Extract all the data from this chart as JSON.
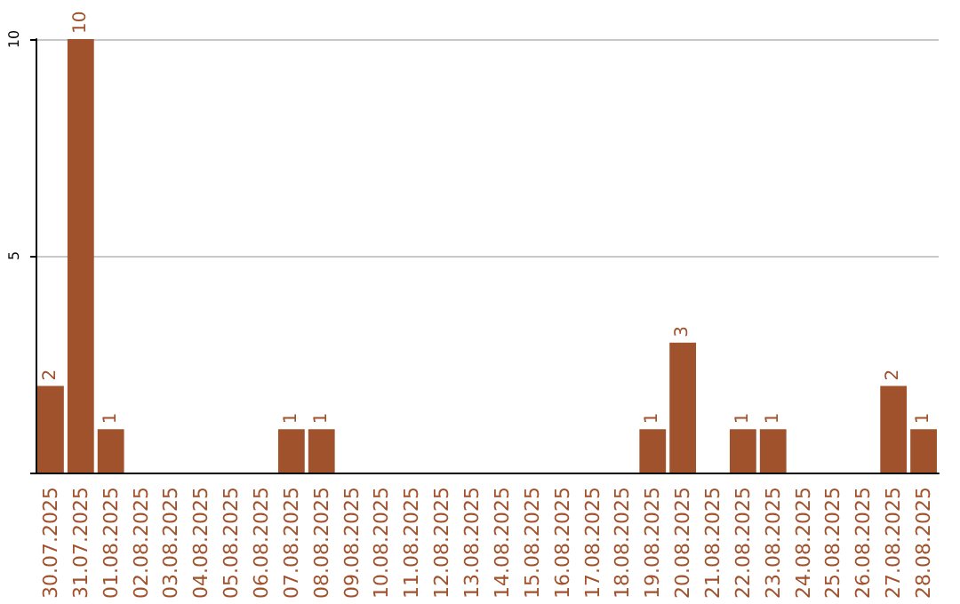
{
  "chart_data": {
    "type": "bar",
    "categories": [
      "30.07.2025",
      "31.07.2025",
      "01.08.2025",
      "02.08.2025",
      "03.08.2025",
      "04.08.2025",
      "05.08.2025",
      "06.08.2025",
      "07.08.2025",
      "08.08.2025",
      "09.08.2025",
      "10.08.2025",
      "11.08.2025",
      "12.08.2025",
      "13.08.2025",
      "14.08.2025",
      "15.08.2025",
      "16.08.2025",
      "17.08.2025",
      "18.08.2025",
      "19.08.2025",
      "20.08.2025",
      "21.08.2025",
      "22.08.2025",
      "23.08.2025",
      "24.08.2025",
      "25.08.2025",
      "26.08.2025",
      "27.08.2025",
      "28.08.2025"
    ],
    "values": [
      2,
      10,
      1,
      0,
      0,
      0,
      0,
      0,
      1,
      1,
      0,
      0,
      0,
      0,
      0,
      0,
      0,
      0,
      0,
      0,
      1,
      3,
      0,
      1,
      1,
      0,
      0,
      0,
      2,
      1
    ],
    "value_labels": [
      "2",
      "10",
      "1",
      null,
      null,
      null,
      null,
      null,
      "1",
      "1",
      null,
      null,
      null,
      null,
      null,
      null,
      null,
      null,
      null,
      null,
      "1",
      "3",
      null,
      "1",
      "1",
      null,
      null,
      null,
      "2",
      "1"
    ],
    "color": "#a0522d",
    "ylim": [
      0,
      10
    ],
    "yticks": [
      {
        "value": 0,
        "label": null
      },
      5,
      10
    ],
    "grid": "y"
  }
}
